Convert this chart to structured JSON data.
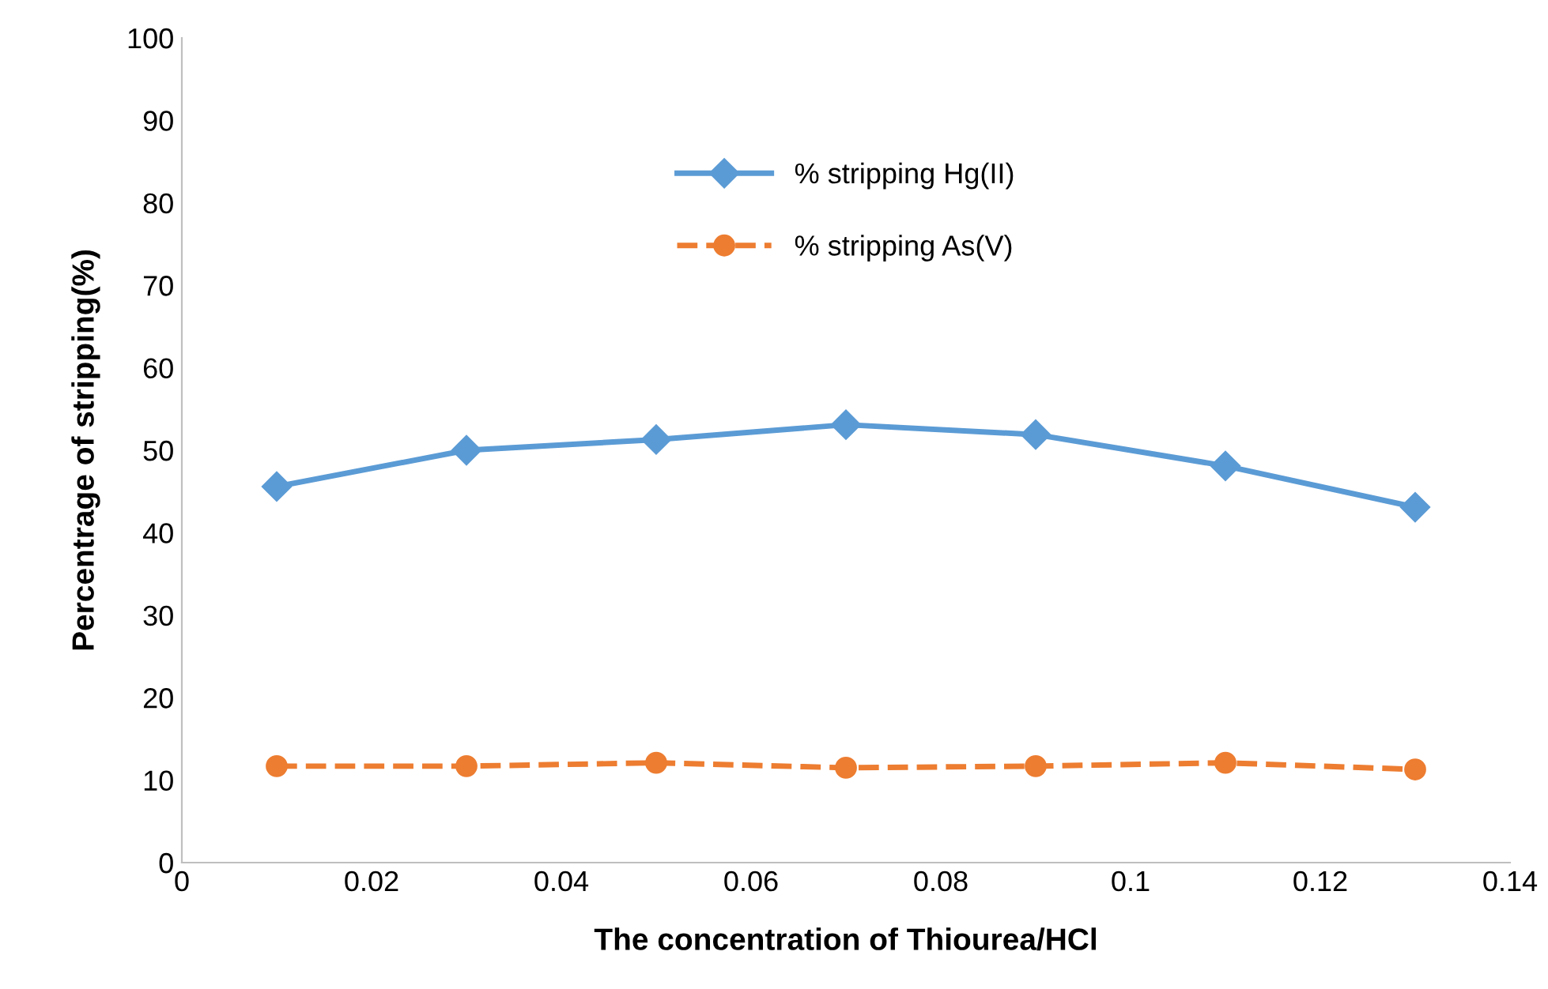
{
  "chart_data": {
    "type": "line",
    "xlabel": "The concentration of Thiourea/HCl",
    "ylabel": "Percentrage of stripping(%)",
    "x": [
      0.01,
      0.03,
      0.05,
      0.07,
      0.09,
      0.11,
      0.13
    ],
    "series": [
      {
        "name": "% stripping Hg(II)",
        "color": "#5b9bd5",
        "values": [
          45.6,
          50.0,
          51.3,
          53.1,
          51.9,
          48.1,
          43.1
        ],
        "marker": "diamond",
        "line_style": "solid"
      },
      {
        "name": "% stripping As(V)",
        "color": "#ed7d31",
        "values": [
          11.7,
          11.7,
          12.1,
          11.5,
          11.7,
          12.1,
          11.3
        ],
        "marker": "circle",
        "line_style": "dashed"
      }
    ],
    "xlim": [
      0,
      0.14
    ],
    "xticks": [
      0,
      0.02,
      0.04,
      0.06,
      0.08,
      0.1,
      0.12,
      0.14
    ],
    "ylim": [
      0,
      100
    ],
    "yticks": [
      0,
      10,
      20,
      30,
      40,
      50,
      60,
      70,
      80,
      90,
      100
    ],
    "grid": false,
    "legend": "top"
  }
}
